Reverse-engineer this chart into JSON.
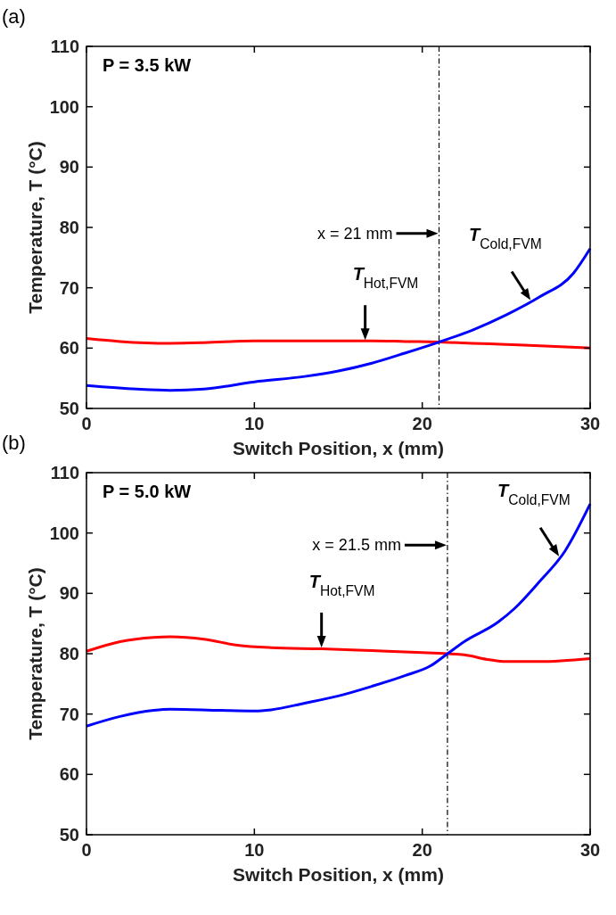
{
  "chart_data": [
    {
      "type": "line",
      "title": "P = 3.5 kW",
      "xlabel": "Switch Position, x (mm)",
      "ylabel": "Temperature, T (°C)",
      "xlim": [
        0,
        30
      ],
      "xticks": [
        0,
        10,
        20,
        30
      ],
      "ylim": [
        50,
        110
      ],
      "yticks": [
        50,
        60,
        70,
        80,
        90,
        100,
        110
      ],
      "grid": false,
      "ref_lines": [
        {
          "axis": "x",
          "value": 21,
          "label": "x = 21 mm",
          "line_style": "dashdot"
        }
      ],
      "annotations": [
        "(a)",
        {
          "text": "T$_{Hot,FVM}$",
          "x": 16.6,
          "y": 61.2
        },
        {
          "text": "T$_{Cold,FVM}$",
          "x": 26.5,
          "y": 67.8
        }
      ],
      "series": [
        {
          "color": "#ff0000",
          "x": [
            0,
            2,
            5,
            7,
            10,
            13,
            15,
            17,
            19,
            21,
            23,
            25,
            27,
            30
          ],
          "values": [
            61.6,
            61.1,
            60.8,
            60.9,
            61.2,
            61.2,
            61.2,
            61.2,
            61.1,
            61,
            60.8,
            60.6,
            60.4,
            60
          ]
        },
        {
          "color": "#0000ff",
          "x": [
            0,
            3,
            5,
            7,
            10,
            13,
            15,
            17,
            19,
            21,
            23,
            25,
            27,
            29,
            30
          ],
          "values": [
            53.8,
            53.2,
            53,
            53.2,
            54.4,
            55.3,
            56.2,
            57.5,
            59.2,
            61,
            63,
            65.5,
            68.5,
            72.4,
            76.5
          ]
        }
      ]
    },
    {
      "type": "line",
      "title": "P = 5.0 kW",
      "xlabel": "Switch Position, x (mm)",
      "ylabel": "Temperature, T (°C)",
      "xlim": [
        0,
        30
      ],
      "xticks": [
        0,
        10,
        20,
        30
      ],
      "ylim": [
        50,
        110
      ],
      "yticks": [
        50,
        60,
        70,
        80,
        90,
        100,
        110
      ],
      "grid": false,
      "ref_lines": [
        {
          "axis": "x",
          "value": 21.5,
          "label": "x = 21.5 mm",
          "line_style": "dashdot"
        }
      ],
      "annotations": [
        "(b)",
        {
          "text": "T$_{Hot,FVM}$",
          "x": 14,
          "y": 80.9
        },
        {
          "text": "T$_{Cold,FVM}$",
          "x": 28.2,
          "y": 96
        }
      ],
      "series": [
        {
          "color": "#ff0000",
          "x": [
            0,
            2,
            4,
            5,
            7,
            9,
            11,
            14,
            17,
            20,
            21.5,
            22.5,
            24,
            25,
            27,
            30
          ],
          "values": [
            80.4,
            82,
            82.7,
            82.8,
            82.4,
            81.4,
            81,
            80.8,
            80.5,
            80.2,
            80,
            79.8,
            79,
            78.7,
            78.7,
            79.2
          ]
        },
        {
          "color": "#0000ff",
          "x": [
            0,
            2,
            4,
            5,
            8,
            10,
            11,
            13,
            15,
            17,
            19,
            20.5,
            21.5,
            22.5,
            24.5,
            25.5,
            27,
            28.5,
            30
          ],
          "values": [
            68,
            69.6,
            70.6,
            70.8,
            70.6,
            70.5,
            70.7,
            71.8,
            73,
            74.6,
            76.4,
            78,
            80,
            82,
            85.2,
            87.5,
            92,
            97,
            104.8
          ]
        }
      ]
    }
  ]
}
